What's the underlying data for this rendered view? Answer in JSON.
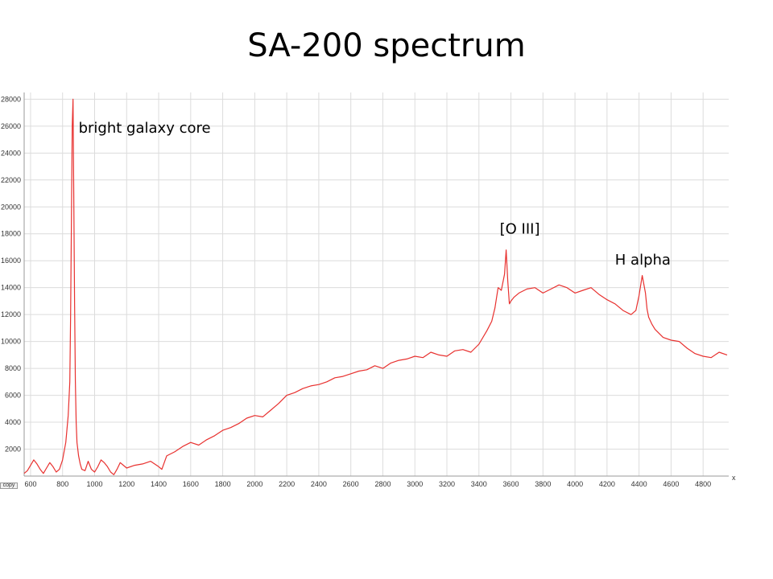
{
  "slide": {
    "title": "SA-200 spectrum"
  },
  "toolbar": {
    "copy_label": "copy"
  },
  "chart_data": {
    "type": "line",
    "title": "",
    "xlabel": "",
    "ylabel": "",
    "x_axis_marker": "x",
    "xlim": [
      560,
      4960
    ],
    "ylim": [
      0,
      28500
    ],
    "x_ticks": [
      600,
      800,
      1000,
      1200,
      1400,
      1600,
      1800,
      2000,
      2200,
      2400,
      2600,
      2800,
      3000,
      3200,
      3400,
      3600,
      3800,
      4000,
      4200,
      4400,
      4600,
      4800
    ],
    "y_ticks": [
      2000,
      4000,
      6000,
      8000,
      10000,
      12000,
      14000,
      16000,
      18000,
      20000,
      22000,
      24000,
      26000,
      28000
    ],
    "grid": true,
    "legend": "none",
    "line_color": "#e8312f",
    "series": [
      {
        "x": [
          560,
          580,
          600,
          620,
          640,
          660,
          680,
          700,
          720,
          740,
          760,
          780,
          800,
          820,
          835,
          845,
          850,
          855,
          860,
          865,
          870,
          875,
          880,
          885,
          890,
          900,
          910,
          920,
          940,
          960,
          980,
          1000,
          1020,
          1040,
          1060,
          1080,
          1100,
          1120,
          1140,
          1160,
          1180,
          1200,
          1250,
          1300,
          1350,
          1400,
          1420,
          1450,
          1500,
          1550,
          1600,
          1650,
          1700,
          1750,
          1800,
          1850,
          1900,
          1950,
          2000,
          2050,
          2100,
          2150,
          2200,
          2250,
          2300,
          2350,
          2400,
          2450,
          2500,
          2550,
          2600,
          2650,
          2700,
          2750,
          2800,
          2850,
          2900,
          2950,
          3000,
          3050,
          3100,
          3150,
          3200,
          3250,
          3300,
          3350,
          3400,
          3450,
          3480,
          3500,
          3520,
          3540,
          3560,
          3570,
          3580,
          3590,
          3600,
          3620,
          3650,
          3700,
          3750,
          3800,
          3850,
          3900,
          3950,
          4000,
          4050,
          4100,
          4150,
          4200,
          4250,
          4300,
          4350,
          4380,
          4400,
          4420,
          4440,
          4450,
          4460,
          4480,
          4500,
          4550,
          4600,
          4650,
          4700,
          4750,
          4800,
          4850,
          4900,
          4950
        ],
        "y": [
          200,
          400,
          800,
          1200,
          900,
          500,
          200,
          600,
          1000,
          700,
          300,
          500,
          1200,
          2500,
          4500,
          7000,
          12000,
          19000,
          26000,
          28000,
          21000,
          13000,
          7000,
          4000,
          2500,
          1500,
          900,
          500,
          400,
          1100,
          500,
          300,
          700,
          1200,
          1000,
          700,
          300,
          100,
          500,
          1000,
          800,
          600,
          800,
          900,
          1100,
          700,
          500,
          1500,
          1800,
          2200,
          2500,
          2300,
          2700,
          3000,
          3400,
          3600,
          3900,
          4300,
          4500,
          4400,
          4900,
          5400,
          6000,
          6200,
          6500,
          6700,
          6800,
          7000,
          7300,
          7400,
          7600,
          7800,
          7900,
          8200,
          8000,
          8400,
          8600,
          8700,
          8900,
          8800,
          9200,
          9000,
          8900,
          9300,
          9400,
          9200,
          9800,
          10800,
          11500,
          12500,
          14000,
          13800,
          15000,
          16800,
          14500,
          12800,
          13000,
          13300,
          13600,
          13900,
          14000,
          13600,
          13900,
          14200,
          14000,
          13600,
          13800,
          14000,
          13500,
          13100,
          12800,
          12300,
          12000,
          12300,
          13400,
          14900,
          13600,
          12400,
          11800,
          11300,
          10900,
          10300,
          10100,
          10000,
          9500,
          9100,
          8900,
          8800,
          9200,
          9000
        ]
      }
    ],
    "annotations": [
      {
        "text": "bright galaxy core",
        "x": 900,
        "y": 25500
      },
      {
        "text": "[O III]",
        "x": 3530,
        "y": 18000
      },
      {
        "text": "H alpha",
        "x": 4250,
        "y": 15700
      }
    ]
  }
}
